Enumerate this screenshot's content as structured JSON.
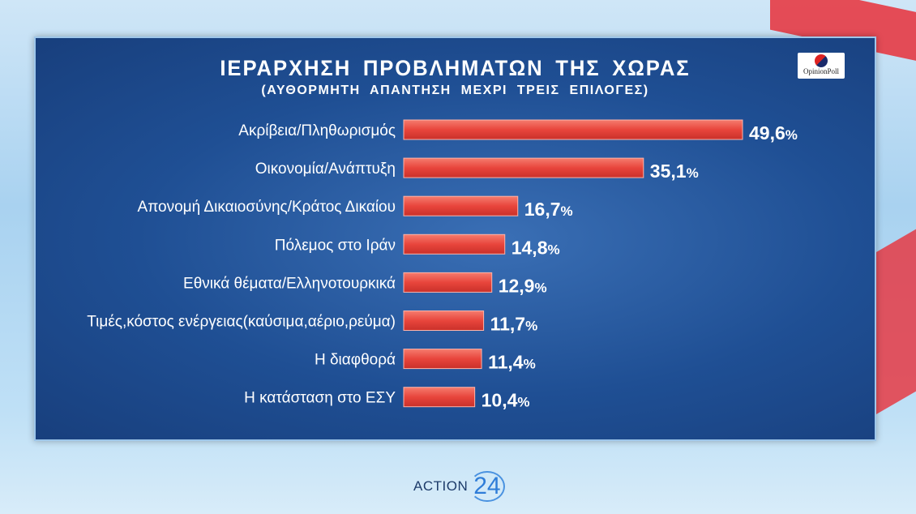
{
  "chart_data": {
    "type": "bar",
    "orientation": "horizontal",
    "title": "ΙΕΡΑΡΧΗΣΗ ΠΡΟΒΛΗΜΑΤΩΝ ΤΗΣ ΧΩΡΑΣ",
    "subtitle": "(ΑΥΘΟΡΜΗΤΗ ΑΠΑΝΤΗΣΗ ΜΕΧΡΙ ΤΡΕΙΣ ΕΠΙΛΟΓΕΣ)",
    "categories": [
      "Ακρίβεια/Πληθωρισμός",
      "Οικονομία/Ανάπτυξη",
      "Απονομή Δικαιοσύνης/Κράτος Δικαίου",
      "Πόλεμος στο Ιράν",
      "Εθνικά θέματα/Ελληνοτουρκικά",
      "Τιμές,κόστος ενέργειας(καύσιμα,αέριο,ρεύμα)",
      "Η διαφθορά",
      "Η κατάσταση στο ΕΣΥ"
    ],
    "values": [
      49.6,
      35.1,
      16.7,
      14.8,
      12.9,
      11.7,
      11.4,
      10.4
    ],
    "value_labels": [
      "49,6",
      "35,1",
      "16,7",
      "14,8",
      "12,9",
      "11,7",
      "11,4",
      "10,4"
    ],
    "unit": "%",
    "bar_color": "#e8453c",
    "grid": false
  },
  "logo": {
    "text": "OpinionPoll"
  },
  "footer": {
    "channel_text": "ACTION",
    "channel_number": "24"
  }
}
